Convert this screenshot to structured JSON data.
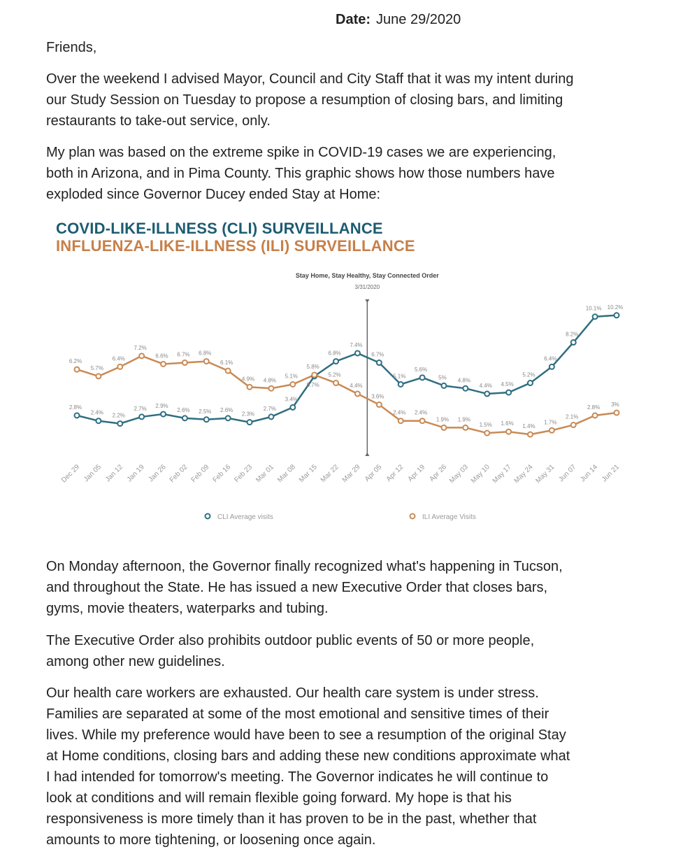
{
  "date": {
    "label": "Date:",
    "value": "June 29/2020"
  },
  "greeting": "Friends,",
  "paragraphs_before": [
    [
      "Over the weekend I advised Mayor, Council and City Staff that it was my intent during",
      "our Study Session on Tuesday to propose a resumption of closing bars, and limiting",
      "restaurants to take-out service, only."
    ],
    [
      "My plan was based on the extreme spike in COVID-19 cases we are experiencing,",
      "both in Arizona, and in Pima County.  This graphic shows how those numbers have",
      "exploded since Governor Ducey ended Stay at Home:"
    ]
  ],
  "chart_data": {
    "type": "line",
    "title": "COVID-LIKE-ILLNESS (CLI) SURVEILLANCE",
    "subtitle": "INFLUENZA-LIKE-ILLNESS (ILI) SURVEILLANCE",
    "annotation": {
      "text": "Stay Home, Stay Healthy, Stay Connected Order",
      "date": "3/31/2020"
    },
    "categories": [
      "Dec 29",
      "Jan 05",
      "Jan 12",
      "Jan 19",
      "Jan 26",
      "Feb 02",
      "Feb 09",
      "Feb 16",
      "Feb 23",
      "Mar 01",
      "Mar 08",
      "Mar 15",
      "Mar 22",
      "Mar 29",
      "Apr 05",
      "Apr 12",
      "Apr 19",
      "Apr 26",
      "May 03",
      "May 10",
      "May 17",
      "May 24",
      "May 31",
      "Jun 07",
      "Jun 14",
      "Jun 21"
    ],
    "series": [
      {
        "name": "CLI Average visits",
        "color": "#2e6e80",
        "values": [
          2.8,
          2.4,
          2.2,
          2.7,
          2.9,
          2.6,
          2.5,
          2.6,
          2.3,
          2.7,
          3.4,
          5.7,
          6.8,
          7.4,
          6.7,
          5.1,
          5.6,
          5,
          4.8,
          4.4,
          4.5,
          5.2,
          6.4,
          8.2,
          10.1,
          10.2
        ]
      },
      {
        "name": "ILI Average Visits",
        "color": "#c98a55",
        "values": [
          6.2,
          5.7,
          6.4,
          7.2,
          6.6,
          6.7,
          6.8,
          6.1,
          4.9,
          4.8,
          5.1,
          5.8,
          5.2,
          4.4,
          3.6,
          2.4,
          2.4,
          1.9,
          1.9,
          1.5,
          1.6,
          1.4,
          1.7,
          2.1,
          2.8,
          3
        ]
      }
    ],
    "units": "%",
    "grid": false,
    "legend": "bottom"
  },
  "paragraphs_after": [
    [
      "On Monday afternoon, the Governor finally recognized what's happening in Tucson,",
      "and throughout the State. He has issued a new Executive Order that closes bars,",
      "gyms, movie theaters, waterparks and tubing."
    ],
    [
      "The Executive Order also prohibits outdoor public events of 50 or more people,",
      "among other new guidelines."
    ],
    [
      "Our health care workers are exhausted. Our health care system is under stress.",
      "Families are separated at some of the most emotional and sensitive times of their",
      "lives. While my preference would have been to see a resumption of the original Stay",
      "at Home conditions, closing bars and adding these new conditions approximate what",
      "I had intended for tomorrow's meeting. The Governor indicates he will continue to",
      "look at conditions and will remain flexible going forward. My hope is that his",
      "responsiveness is more timely than it has proven to be in the past, whether that",
      "amounts to more tightening, or loosening once again."
    ]
  ]
}
